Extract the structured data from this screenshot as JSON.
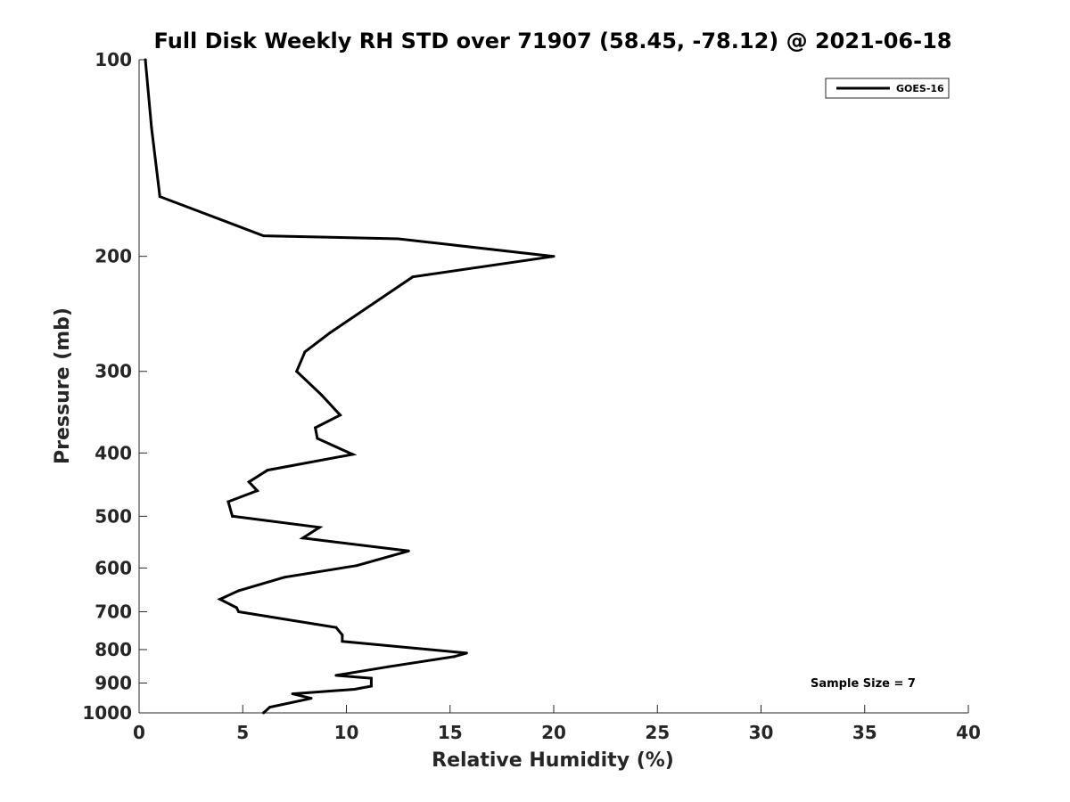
{
  "chart_data": {
    "type": "line",
    "title": "Full Disk Weekly RH STD over 71907 (58.45, -78.12) @ 2021-06-18",
    "xlabel": "Relative Humidity (%)",
    "ylabel": "Pressure (mb)",
    "xlim": [
      0,
      40
    ],
    "ylim": [
      100,
      1000
    ],
    "y_scale": "log",
    "y_reversed": true,
    "x_ticks": [
      "0",
      "5",
      "10",
      "15",
      "20",
      "25",
      "30",
      "35",
      "40"
    ],
    "y_ticks": [
      "100",
      "200",
      "300",
      "400",
      "500",
      "600",
      "700",
      "800",
      "900",
      "1000"
    ],
    "grid": false,
    "legend": "top-right",
    "annotation": "Sample Size = 7",
    "series": [
      {
        "name": "GOES-16",
        "color": "#000000",
        "x": [
          0.3,
          0.6,
          1.0,
          6.0,
          12.5,
          20.0,
          13.2,
          9.2,
          8.0,
          7.6,
          8.8,
          9.7,
          8.5,
          8.6,
          10.3,
          6.2,
          5.3,
          5.7,
          4.3,
          4.5,
          8.7,
          7.9,
          13.0,
          10.5,
          7.0,
          4.8,
          3.9,
          4.7,
          4.8,
          9.5,
          9.8,
          9.8,
          15.8,
          15.2,
          12.0,
          9.5,
          11.2,
          11.2,
          10.4,
          7.4,
          8.3,
          6.3,
          6.0
        ],
        "y": [
          100,
          127,
          162,
          186,
          188,
          200,
          215,
          262,
          280,
          300,
          326,
          350,
          366,
          380,
          402,
          425,
          443,
          457,
          475,
          500,
          520,
          540,
          565,
          595,
          620,
          650,
          670,
          690,
          700,
          740,
          760,
          777,
          810,
          820,
          850,
          876,
          885,
          910,
          920,
          935,
          950,
          980,
          1000
        ]
      }
    ]
  }
}
